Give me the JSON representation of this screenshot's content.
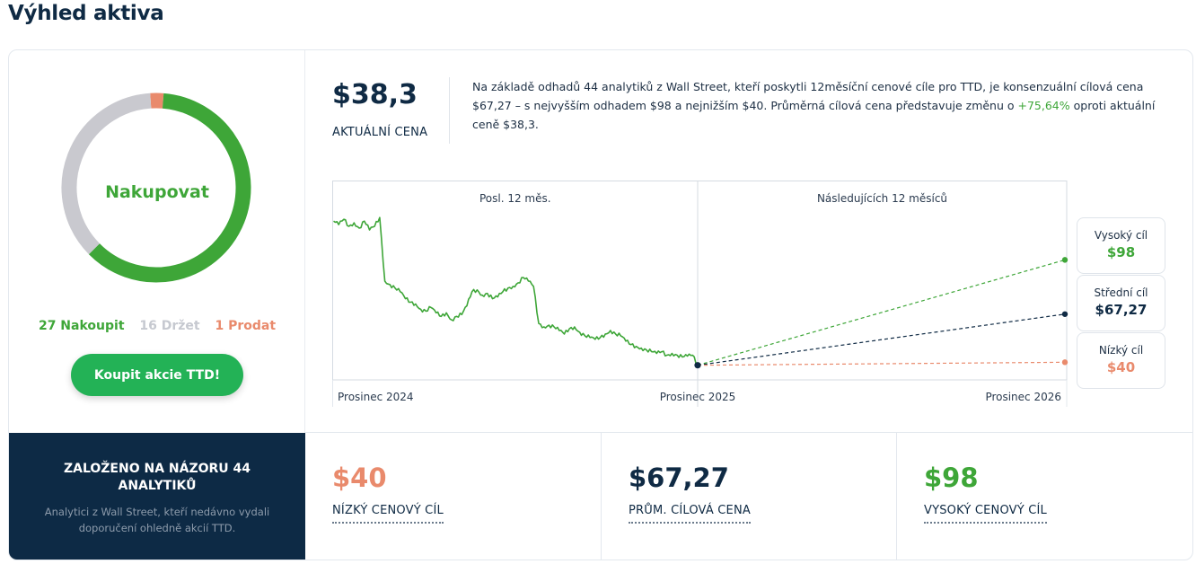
{
  "page": {
    "title": "Výhled aktiva"
  },
  "consensus": {
    "verdict": "Nakupovat",
    "buy_count_label": "27 Nakoupit",
    "hold_count_label": "16 Držet",
    "sell_count_label": "1 Prodat",
    "buy_count": 27,
    "hold_count": 16,
    "sell_count": 1,
    "button_label": "Koupit akcie TTD!",
    "colors": {
      "buy": "#3ea638",
      "hold": "#c9c9cf",
      "sell": "#e98a6c"
    }
  },
  "price": {
    "value": "$38,3",
    "label": "AKTUÁLNÍ CENA"
  },
  "summary": {
    "part1": "Na základě odhadů 44 analytiků z Wall Street, kteří poskytli 12měsíční cenové cíle pro TTD, je konsenzuální cílová cena $67,27 – s nejvyšším odhadem $98 a nejnižším $40. Průměrná cílová cena představuje změnu o ",
    "change": "+75,64%",
    "part2": " oproti aktuální ceně $38,3."
  },
  "chart_data": {
    "type": "line",
    "section_labels": [
      "Posl. 12 měs.",
      "Následujících 12 měsíců"
    ],
    "x_tick_labels": [
      "Prosinec 2024",
      "Prosinec 2025",
      "Prosinec 2026"
    ],
    "history_x": [
      "Prosinec 2024",
      "Prosinec 2025"
    ],
    "history_values": [
      120,
      118,
      121,
      117,
      119,
      116,
      120,
      115,
      117,
      122,
      86,
      84,
      82,
      80,
      76,
      74,
      73,
      70,
      69,
      71,
      68,
      66,
      68,
      64,
      66,
      67,
      72,
      80,
      81,
      78,
      79,
      76,
      77,
      80,
      82,
      83,
      85,
      88,
      86,
      83,
      62,
      60,
      61,
      60,
      58,
      56,
      59,
      60,
      57,
      55,
      54,
      53,
      54,
      56,
      58,
      56,
      55,
      52,
      50,
      49,
      48,
      47,
      46,
      45,
      46,
      44,
      45,
      44,
      43,
      43.5,
      44,
      38.3
    ],
    "current_price": 38.3,
    "targets": {
      "high": 98,
      "average": 67.27,
      "low": 40
    },
    "y_range": [
      30,
      130
    ],
    "grid": false,
    "series_colors": {
      "history": "#3ea638",
      "high": "#3ea638",
      "average": "#0f2a44",
      "low": "#e98a6c"
    }
  },
  "targets": {
    "high": {
      "label": "Vysoký cíl",
      "value": "$98"
    },
    "average": {
      "label": "Střední cíl",
      "value": "$67,27"
    },
    "low": {
      "label": "Nízký cíl",
      "value": "$40"
    }
  },
  "basis": {
    "title": "ZALOŽENO NA NÁZORU 44 ANALYTIKŮ",
    "subtitle": "Analytici z Wall Street, kteří nedávno vydali doporučení ohledně akcií TTD."
  },
  "stats": {
    "low": {
      "value": "$40",
      "label": "NÍZKÝ CENOVÝ CÍL",
      "color": "#e98a6c"
    },
    "average": {
      "value": "$67,27",
      "label": "PRŮM. CÍLOVÁ CENA",
      "color": "#0f2a44"
    },
    "high": {
      "value": "$98",
      "label": "VYSOKÝ CENOVÝ CÍL",
      "color": "#3ea638"
    }
  }
}
